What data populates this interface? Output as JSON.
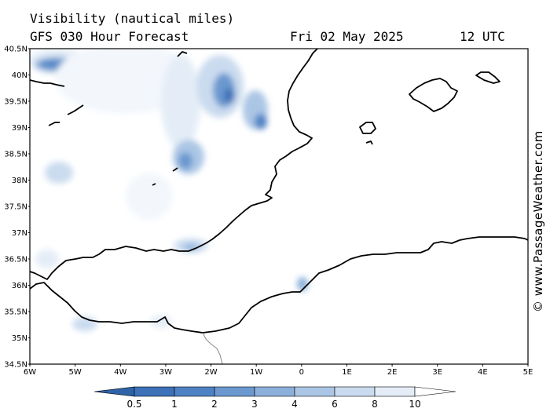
{
  "header": {
    "title": "Visibility (nautical miles)",
    "model": "GFS 030 Hour Forecast",
    "date": "Fri 02 May 2025",
    "time": "12 UTC"
  },
  "credit": "© www.PassageWeather.com",
  "axes": {
    "lon_labels": [
      "6W",
      "5W",
      "4W",
      "3W",
      "2W",
      "1W",
      "0",
      "1E",
      "2E",
      "3E",
      "4E",
      "5E"
    ],
    "lat_labels": [
      "40.5N",
      "40N",
      "39.5N",
      "39N",
      "38.5N",
      "38N",
      "37.5N",
      "37N",
      "36.5N",
      "36N",
      "35.5N",
      "35N",
      "34.5N"
    ],
    "lon_range": [
      -6,
      5
    ],
    "lat_range": [
      34.5,
      40.5
    ]
  },
  "colorbar": {
    "labels": [
      "0.5",
      "1",
      "2",
      "3",
      "4",
      "6",
      "8",
      "10"
    ],
    "colors": [
      "#3d71b8",
      "#4f82c4",
      "#6b98cf",
      "#8cb0da",
      "#abc6e5",
      "#cadbef",
      "#e4edf7",
      "#ffffff"
    ]
  },
  "colors": {
    "coastline": "#000000",
    "border": "#888888"
  }
}
